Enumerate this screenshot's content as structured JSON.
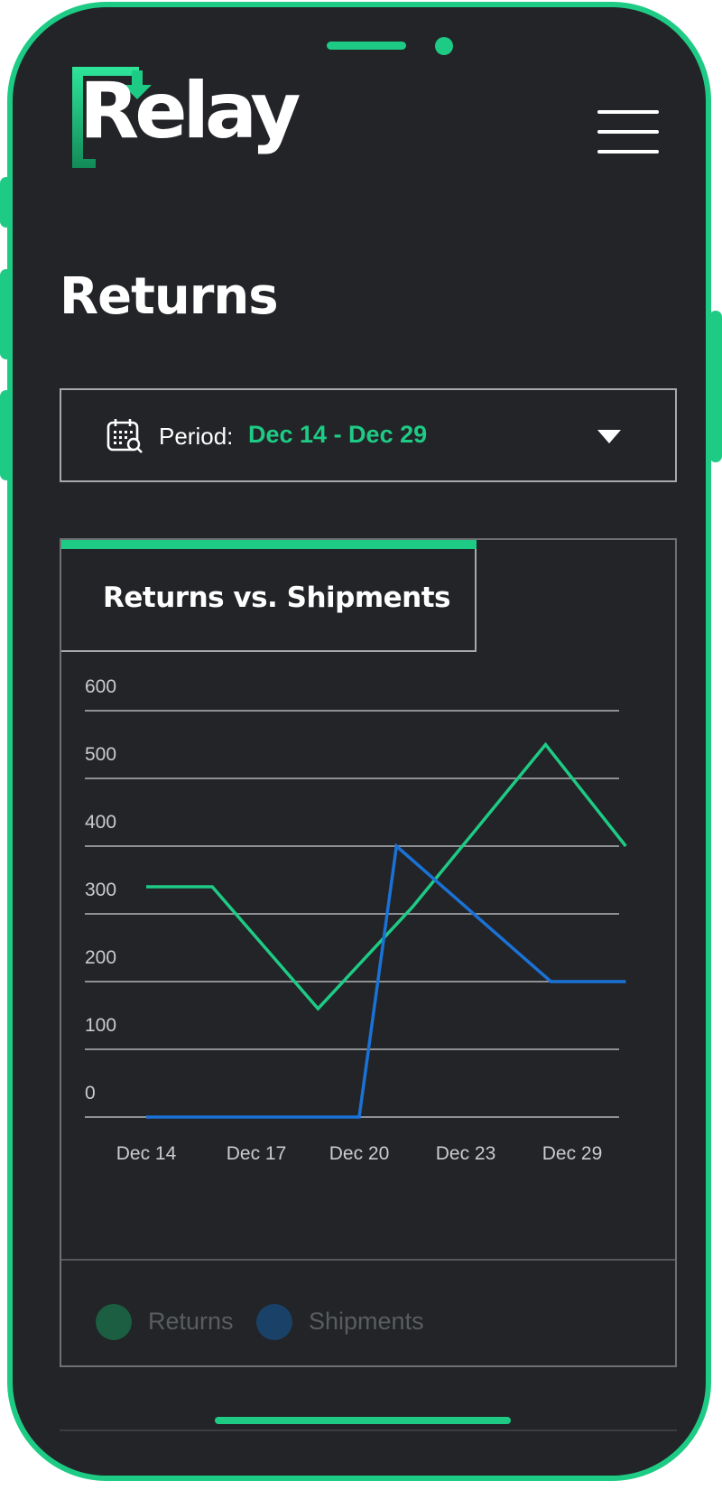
{
  "app": {
    "logo_text": "Relay"
  },
  "header": {
    "menu_icon": "hamburger-menu-icon"
  },
  "page": {
    "title": "Returns"
  },
  "period": {
    "icon": "calendar-search-icon",
    "label": "Period:",
    "value": "Dec 14  - Dec 29",
    "dropdown_icon": "caret-down-icon"
  },
  "card": {
    "tab_title": "Returns vs. Shipments"
  },
  "colors": {
    "accent": "#1ecb85",
    "returns": "#1ecb85",
    "shipments": "#1a72d6",
    "background": "#222427"
  },
  "chart_data": {
    "type": "line",
    "title": "Returns vs. Shipments",
    "xlabel": "",
    "ylabel": "",
    "ylim": [
      0,
      600
    ],
    "y_ticks": [
      600,
      500,
      400,
      300,
      200,
      100,
      0
    ],
    "x_tick_labels": [
      "Dec 14",
      "Dec 17",
      "Dec 20",
      "Dec 23",
      "Dec 29"
    ],
    "grid": true,
    "legend_position": "bottom",
    "series": [
      {
        "name": "Returns",
        "color": "#1ecb85",
        "points": [
          [
            0,
            340
          ],
          [
            0.6,
            340
          ],
          [
            1.6,
            160
          ],
          [
            2.5,
            310
          ],
          [
            3.75,
            550
          ],
          [
            4.55,
            400
          ]
        ]
      },
      {
        "name": "Shipments",
        "color": "#1a72d6",
        "points": [
          [
            0,
            0
          ],
          [
            2.0,
            0
          ],
          [
            2.35,
            400
          ],
          [
            3.8,
            200
          ],
          [
            4.55,
            200
          ]
        ]
      }
    ]
  },
  "legend": [
    {
      "label": "Returns",
      "color": "#1b5e42"
    },
    {
      "label": "Shipments",
      "color": "#1a4268"
    }
  ]
}
